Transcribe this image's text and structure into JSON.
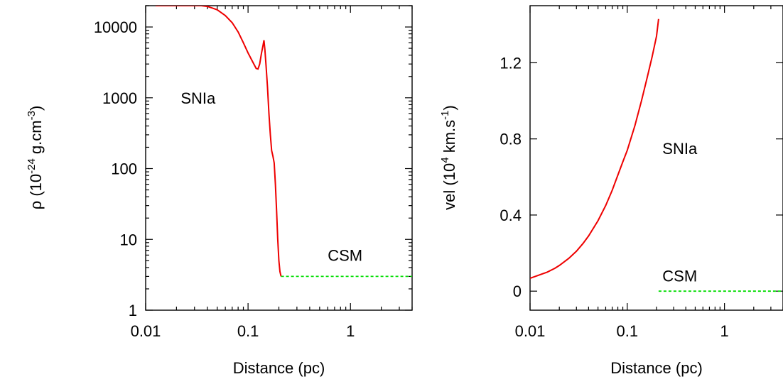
{
  "chart_data": [
    {
      "type": "line",
      "xlabel": "Distance (pc)",
      "ylabel": {
        "main": "ρ (10",
        "sup1": "-24",
        "mid": " g.cm",
        "sup2": "-3",
        "end": ")"
      },
      "xscale": "log",
      "yscale": "log",
      "xlim": [
        0.01,
        4
      ],
      "ylim": [
        1,
        20000
      ],
      "xticks": [
        {
          "value": 0.01,
          "label": "0.01"
        },
        {
          "value": 0.1,
          "label": "0.1"
        },
        {
          "value": 1,
          "label": "1"
        }
      ],
      "yticks": [
        {
          "value": 1,
          "label": "1"
        },
        {
          "value": 10,
          "label": "10"
        },
        {
          "value": 100,
          "label": "100"
        },
        {
          "value": 1000,
          "label": "1000"
        },
        {
          "value": 10000,
          "label": "10000"
        }
      ],
      "annotations": [
        {
          "text": "SNIa",
          "x": 0.022,
          "y": 1000
        },
        {
          "text": "CSM",
          "x": 0.6,
          "y": 6
        }
      ],
      "series": [
        {
          "color": "#ee0000",
          "dash": "solid",
          "x": [
            0.0125,
            0.014,
            0.016,
            0.02,
            0.025,
            0.03,
            0.035,
            0.04,
            0.045,
            0.05,
            0.06,
            0.07,
            0.08,
            0.09,
            0.1,
            0.11,
            0.12,
            0.125,
            0.13,
            0.135,
            0.14,
            0.143,
            0.146,
            0.15,
            0.155,
            0.16,
            0.165,
            0.17,
            0.175,
            0.18,
            0.185,
            0.19,
            0.195,
            0.2,
            0.205,
            0.21
          ],
          "y": [
            20000,
            20000,
            20000,
            20000,
            20000,
            20000,
            20000,
            19500,
            18500,
            17500,
            14500,
            11500,
            8500,
            6000,
            4300,
            3300,
            2600,
            2550,
            3000,
            4200,
            5500,
            6500,
            4800,
            2800,
            1400,
            600,
            300,
            180,
            150,
            120,
            60,
            25,
            10,
            5,
            3.5,
            3
          ]
        },
        {
          "color": "#00dd00",
          "dash": "dashed",
          "x": [
            0.21,
            4
          ],
          "y": [
            3,
            3
          ]
        }
      ]
    },
    {
      "type": "line",
      "xlabel": "Distance (pc)",
      "ylabel": {
        "main": "vel (10",
        "sup1": "4",
        "mid": " km.s",
        "sup2": "-1",
        "end": ")"
      },
      "xscale": "log",
      "yscale": "linear",
      "xlim": [
        0.01,
        4
      ],
      "ylim": [
        -0.1,
        1.5
      ],
      "xticks": [
        {
          "value": 0.01,
          "label": "0.01"
        },
        {
          "value": 0.1,
          "label": "0.1"
        },
        {
          "value": 1,
          "label": "1"
        }
      ],
      "yticks": [
        {
          "value": 0,
          "label": "0"
        },
        {
          "value": 0.4,
          "label": "0.4"
        },
        {
          "value": 0.8,
          "label": "0.8"
        },
        {
          "value": 1.2,
          "label": "1.2"
        }
      ],
      "annotations": [
        {
          "text": "SNIa",
          "x": 0.23,
          "y": 0.75
        },
        {
          "text": "CSM",
          "x": 0.23,
          "y": 0.08
        }
      ],
      "series": [
        {
          "color": "#ee0000",
          "dash": "solid",
          "x": [
            0.01,
            0.012,
            0.015,
            0.018,
            0.02,
            0.025,
            0.03,
            0.035,
            0.04,
            0.05,
            0.06,
            0.07,
            0.08,
            0.09,
            0.1,
            0.12,
            0.14,
            0.16,
            0.18,
            0.2,
            0.21
          ],
          "y": [
            0.068,
            0.082,
            0.1,
            0.12,
            0.135,
            0.172,
            0.21,
            0.25,
            0.29,
            0.37,
            0.45,
            0.53,
            0.61,
            0.68,
            0.74,
            0.87,
            1.0,
            1.12,
            1.23,
            1.34,
            1.43
          ]
        },
        {
          "color": "#00dd00",
          "dash": "dashed",
          "x": [
            0.21,
            4
          ],
          "y": [
            0,
            0
          ]
        }
      ]
    }
  ]
}
